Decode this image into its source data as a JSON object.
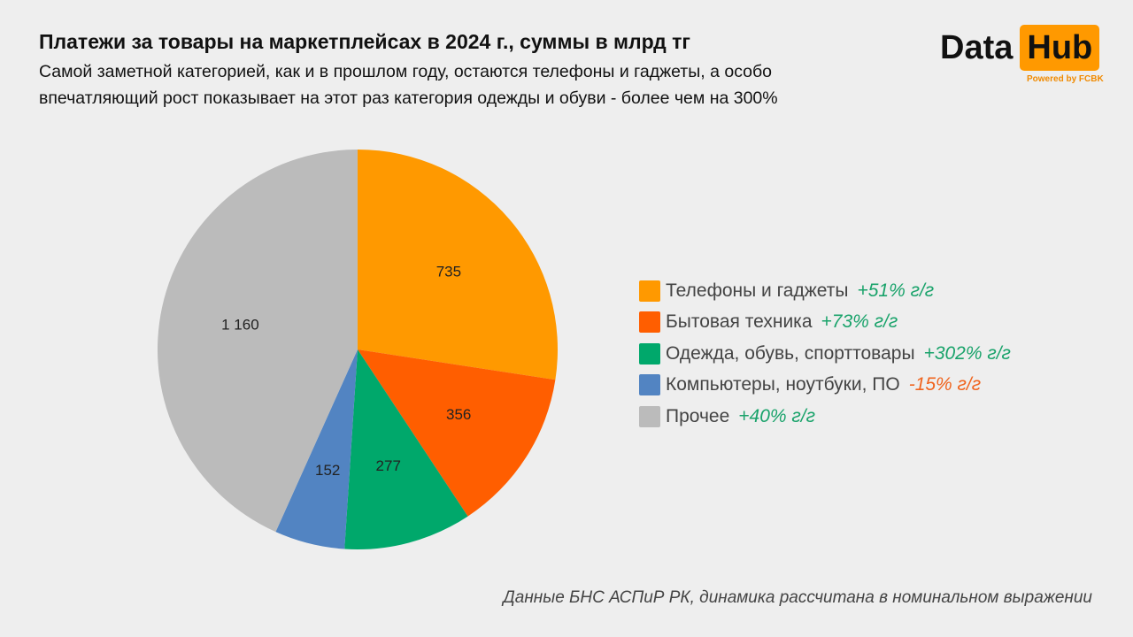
{
  "header": {
    "title": "Платежи за товары на маркетплейсах в 2024 г., суммы в млрд тг",
    "subtitle_line1": "Самой заметной категорией, как и в прошлом году, остаются телефоны и гаджеты, а особо",
    "subtitle_line2": "впечатляющий рост показывает на этот раз категория одежды и обуви - более чем на 300%"
  },
  "logo": {
    "text1": "Data",
    "text2": "Hub",
    "powered": "Powered by FCBK"
  },
  "source": "Данные БНС АСПиР РК, динамика рассчитана в номинальном выражении",
  "chart_data": {
    "type": "pie",
    "title": "Платежи за товары на маркетплейсах в 2024 г., суммы в млрд тг",
    "unit": "млрд тг",
    "start": "top, clockwise",
    "slices": [
      {
        "label": "Телефоны и гаджеты",
        "value": 735,
        "value_label": "735",
        "growth": "+51% г/г",
        "color": "#ff9900",
        "growth_color": "#1aa36b"
      },
      {
        "label": "Бытовая техника",
        "value": 356,
        "value_label": "356",
        "growth": "+73% г/г",
        "color": "#ff5e00",
        "growth_color": "#1aa36b"
      },
      {
        "label": "Одежда, обувь, спорттовары",
        "value": 277,
        "value_label": "277",
        "growth": "+302% г/г",
        "color": "#00a86b",
        "growth_color": "#1aa36b"
      },
      {
        "label": "Компьютеры, ноутбуки, ПО",
        "value": 152,
        "value_label": "152",
        "growth": "-15% г/г",
        "color": "#5284c2",
        "growth_color": "#f0641e"
      },
      {
        "label": "Прочее",
        "value": 1160,
        "value_label": "1 160",
        "growth": "+40% г/г",
        "color": "#bbbbbb",
        "growth_color": "#1aa36b"
      }
    ],
    "legend": "right"
  }
}
